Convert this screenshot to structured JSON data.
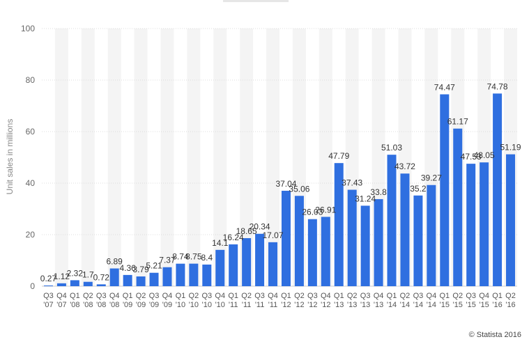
{
  "chart_data": {
    "type": "bar",
    "title": "",
    "xlabel": "",
    "ylabel": "Unit sales in millions",
    "ylim": [
      0,
      100
    ],
    "yticks": [
      0,
      20,
      40,
      60,
      80,
      100
    ],
    "grid": true,
    "series_color": "#2f6fe0",
    "stripe_color": "#f4f4f4",
    "categories": [
      [
        "Q3",
        "'07"
      ],
      [
        "Q4",
        "'07"
      ],
      [
        "Q1",
        "'08"
      ],
      [
        "Q2",
        "'08"
      ],
      [
        "Q3",
        "'08"
      ],
      [
        "Q4",
        "'08"
      ],
      [
        "Q1",
        "'09"
      ],
      [
        "Q2",
        "'09"
      ],
      [
        "Q3",
        "'09"
      ],
      [
        "Q4",
        "'09"
      ],
      [
        "Q1",
        "'10"
      ],
      [
        "Q2",
        "'10"
      ],
      [
        "Q3",
        "'10"
      ],
      [
        "Q4",
        "'10"
      ],
      [
        "Q1",
        "'11"
      ],
      [
        "Q2",
        "'11"
      ],
      [
        "Q3",
        "'11"
      ],
      [
        "Q4",
        "'11"
      ],
      [
        "Q1",
        "'12"
      ],
      [
        "Q2",
        "'12"
      ],
      [
        "Q3",
        "'12"
      ],
      [
        "Q4",
        "'12"
      ],
      [
        "Q1",
        "'13"
      ],
      [
        "Q2",
        "'13"
      ],
      [
        "Q3",
        "'13"
      ],
      [
        "Q4",
        "'13"
      ],
      [
        "Q1",
        "'14"
      ],
      [
        "Q2",
        "'14"
      ],
      [
        "Q3",
        "'14"
      ],
      [
        "Q4",
        "'14"
      ],
      [
        "Q1",
        "'15"
      ],
      [
        "Q2",
        "'15"
      ],
      [
        "Q3",
        "'15"
      ],
      [
        "Q4",
        "'15"
      ],
      [
        "Q1",
        "'16"
      ],
      [
        "Q2",
        "'16"
      ]
    ],
    "values": [
      0.27,
      1.12,
      2.32,
      1.7,
      0.72,
      6.89,
      4.36,
      3.79,
      5.21,
      7.37,
      8.74,
      8.75,
      8.4,
      14.1,
      16.24,
      18.65,
      20.34,
      17.07,
      37.04,
      35.06,
      26.03,
      26.91,
      47.79,
      37.43,
      31.24,
      33.8,
      51.03,
      43.72,
      35.2,
      39.27,
      74.47,
      61.17,
      47.53,
      48.05,
      74.78,
      51.19
    ],
    "value_labels": [
      "0.27",
      "1.12",
      "2.32",
      "1.7",
      "0.72",
      "6.89",
      "4.36",
      "3.79",
      "5.21",
      "7.37",
      "8.74",
      "8.75",
      "8.4",
      "14.1",
      "16.24",
      "18.65",
      "20.34",
      "17.07",
      "37.04",
      "35.06",
      "26.03",
      "26.91",
      "47.79",
      "37.43",
      "31.24",
      "33.8",
      "51.03",
      "43.72",
      "35.2",
      "39.27",
      "74.47",
      "61.17",
      "47.53",
      "48.05",
      "74.78",
      "51.19"
    ]
  },
  "footer": {
    "credit": "© Statista 2016"
  }
}
